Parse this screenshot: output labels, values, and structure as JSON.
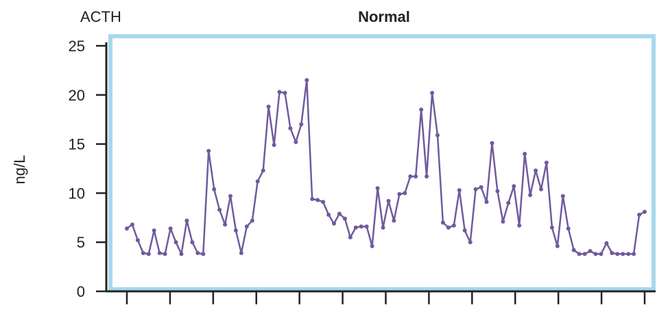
{
  "chart_data": {
    "type": "line",
    "hormone_label": "ACTH",
    "title": "Normal",
    "xlabel": "",
    "ylabel": "ng/L",
    "ylim": [
      0,
      25
    ],
    "yticks": [
      0,
      5,
      10,
      15,
      20,
      25
    ],
    "x_tick_count": 13,
    "grid": false,
    "legend": "none",
    "series": [
      {
        "color": "#6f5a9e",
        "values": [
          6.4,
          6.8,
          5.2,
          3.9,
          3.8,
          6.2,
          3.9,
          3.8,
          6.4,
          5.0,
          3.8,
          7.2,
          5.0,
          3.9,
          3.8,
          14.3,
          10.4,
          8.3,
          6.8,
          9.7,
          6.2,
          3.9,
          6.6,
          7.2,
          11.2,
          12.3,
          18.8,
          14.9,
          20.3,
          20.2,
          16.6,
          15.2,
          17.0,
          21.5,
          9.4,
          9.3,
          9.1,
          7.8,
          6.9,
          7.9,
          7.4,
          5.5,
          6.5,
          6.6,
          6.6,
          4.6,
          10.5,
          6.5,
          9.2,
          7.2,
          9.9,
          10.0,
          11.7,
          11.7,
          18.5,
          11.7,
          20.2,
          15.9,
          7.0,
          6.5,
          6.7,
          10.3,
          6.2,
          5.0,
          10.4,
          10.6,
          9.1,
          15.1,
          10.2,
          7.1,
          9.0,
          10.7,
          6.7,
          14.0,
          9.8,
          12.3,
          10.4,
          13.1,
          6.5,
          4.6,
          9.7,
          6.4,
          4.2,
          3.8,
          3.8,
          4.1,
          3.8,
          3.8,
          4.9,
          3.9,
          3.8,
          3.8,
          3.8,
          3.8,
          7.8,
          8.1
        ]
      }
    ],
    "frame_color": "#a8d8ee",
    "plot_background": "#ffffff",
    "axis_color": "#222222"
  }
}
